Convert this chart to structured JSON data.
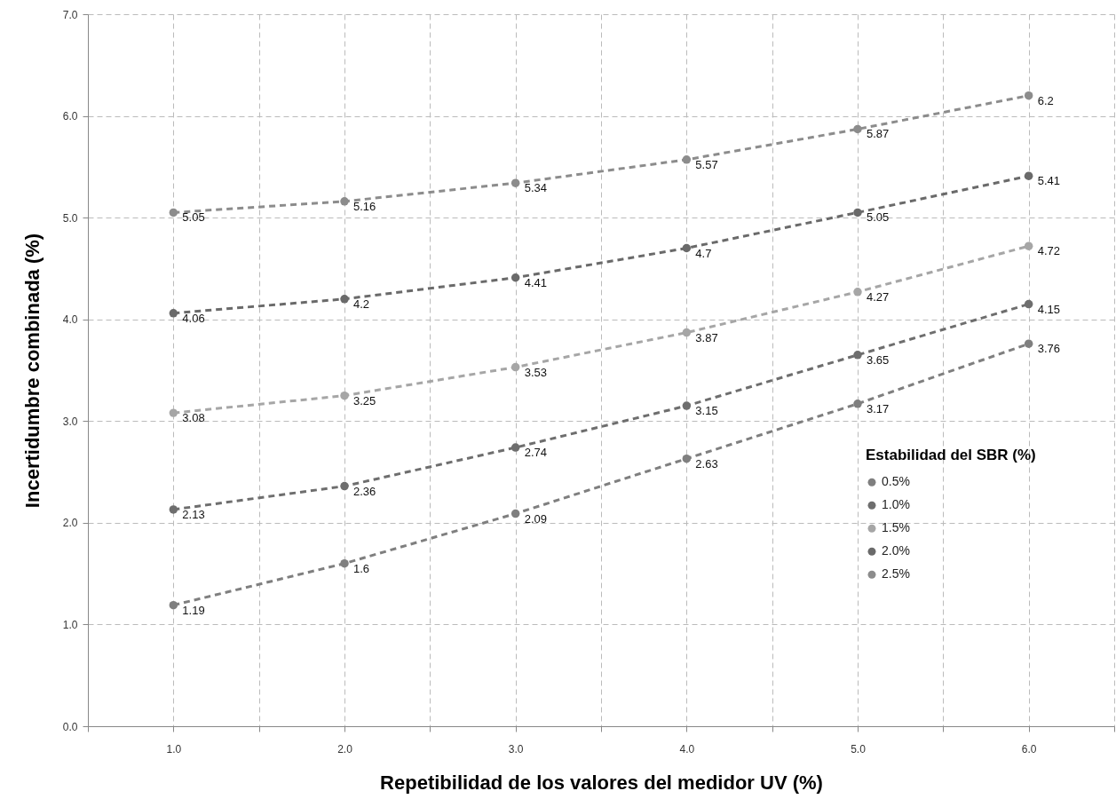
{
  "chart_data": {
    "type": "line",
    "xlabel": "Repetibilidad de los valores del medidor UV (%)",
    "ylabel": "Incertidumbre combinada (%)",
    "legend_title": "Estabilidad del SBR (%)",
    "x": [
      1,
      2,
      3,
      4,
      5,
      6
    ],
    "xlim": [
      0.5,
      6.5
    ],
    "xticks": [
      {
        "value": 0.5,
        "label": null
      },
      {
        "value": 1,
        "label": "1.0"
      },
      {
        "value": 1.5,
        "label": null
      },
      {
        "value": 2,
        "label": "2.0"
      },
      {
        "value": 2.5,
        "label": null
      },
      {
        "value": 3,
        "label": "3.0"
      },
      {
        "value": 3.5,
        "label": null
      },
      {
        "value": 4,
        "label": "4.0"
      },
      {
        "value": 4.5,
        "label": null
      },
      {
        "value": 5,
        "label": "5.0"
      },
      {
        "value": 5.5,
        "label": null
      },
      {
        "value": 6,
        "label": "6.0"
      },
      {
        "value": 6.5,
        "label": null
      }
    ],
    "ylim": [
      0,
      7
    ],
    "yticks": [
      {
        "value": 0,
        "label": "0.0"
      },
      {
        "value": 1,
        "label": "1.0"
      },
      {
        "value": 2,
        "label": "2.0"
      },
      {
        "value": 3,
        "label": "3.0"
      },
      {
        "value": 4,
        "label": "4.0"
      },
      {
        "value": 5,
        "label": "5.0"
      },
      {
        "value": 6,
        "label": "6.0"
      },
      {
        "value": 7,
        "label": "7.0"
      }
    ],
    "series": [
      {
        "name": "0.5%",
        "color": "#7f7f7f",
        "values": [
          1.19,
          1.6,
          2.09,
          2.63,
          3.17,
          3.76
        ]
      },
      {
        "name": "1.0%",
        "color": "#6e6e6e",
        "values": [
          2.13,
          2.36,
          2.74,
          3.15,
          3.65,
          4.15
        ]
      },
      {
        "name": "1.5%",
        "color": "#a6a6a6",
        "values": [
          3.08,
          3.25,
          3.53,
          3.87,
          4.27,
          4.72
        ]
      },
      {
        "name": "2.0%",
        "color": "#6a6a6a",
        "values": [
          4.06,
          4.2,
          4.41,
          4.7,
          5.05,
          5.41
        ]
      },
      {
        "name": "2.5%",
        "color": "#8c8c8c",
        "values": [
          5.05,
          5.16,
          5.34,
          5.57,
          5.87,
          6.2
        ]
      }
    ],
    "data_labels": true,
    "grid": true,
    "legend": "right",
    "marker": "circle",
    "line_style": "dashed"
  }
}
